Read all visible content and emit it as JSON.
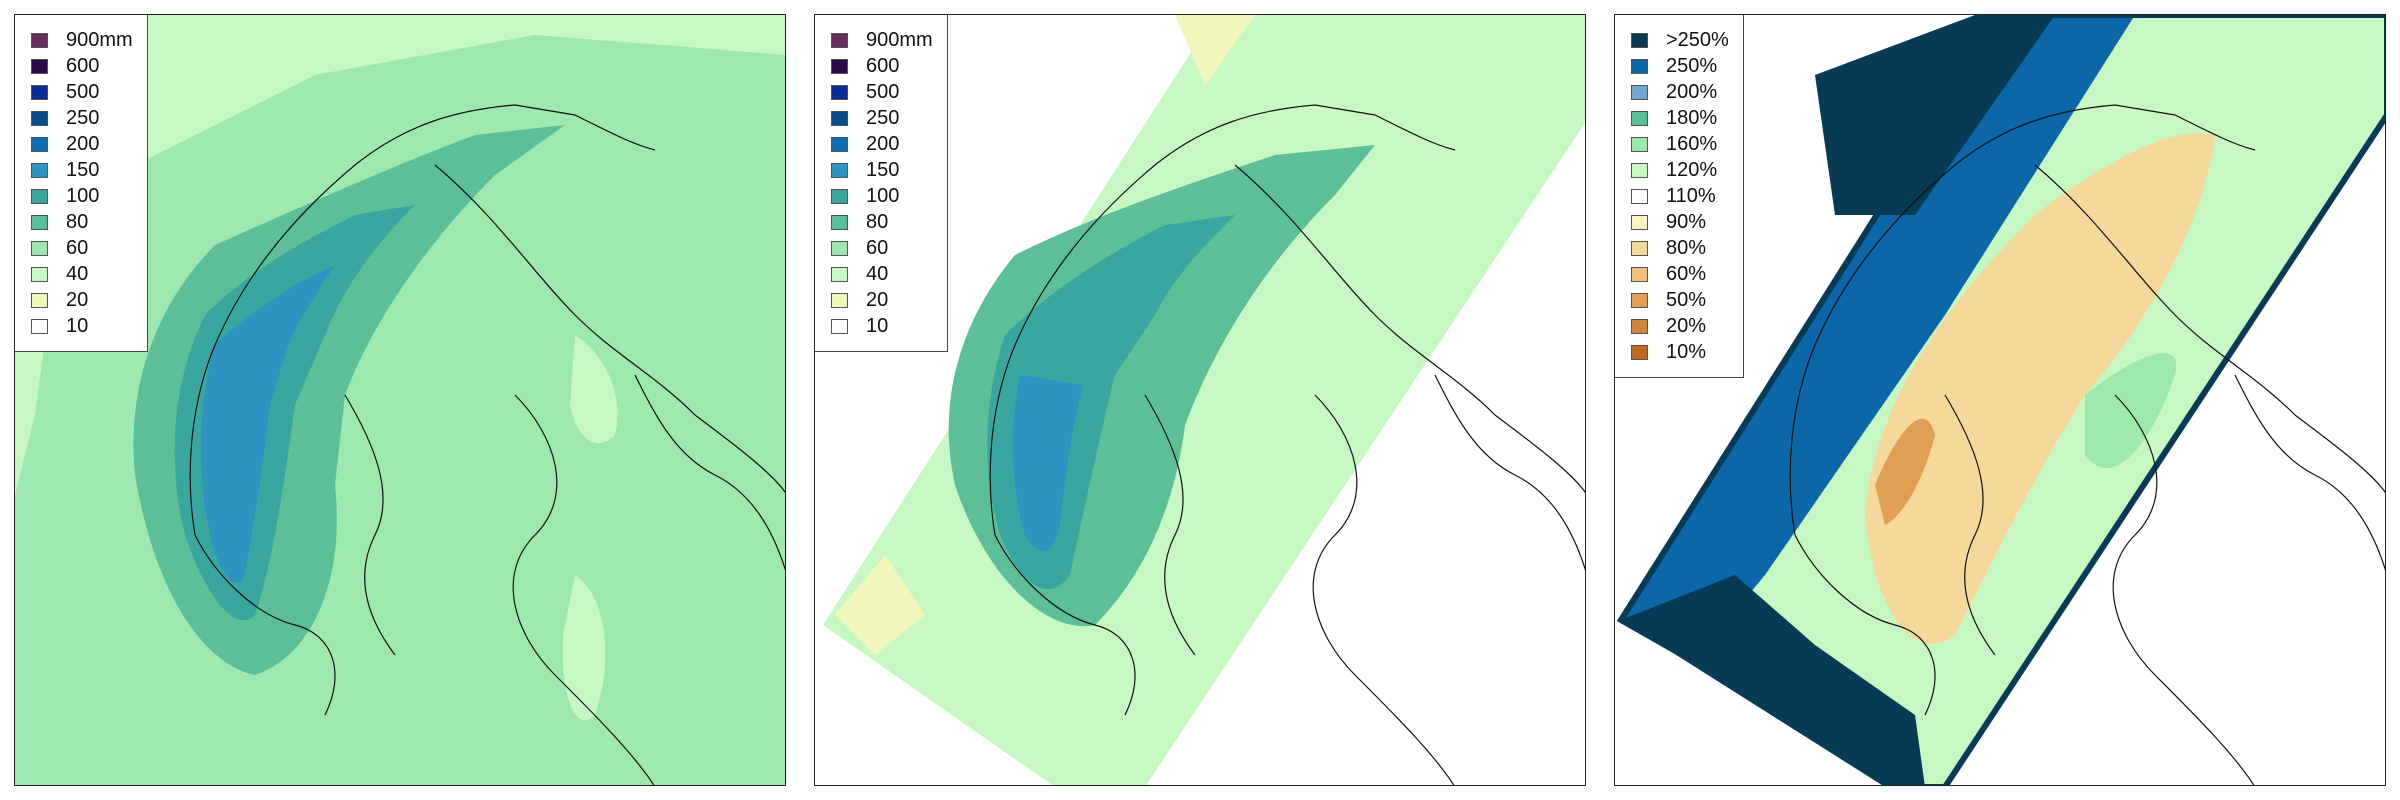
{
  "panels": [
    {
      "id": "panel-1",
      "legend": [
        {
          "label": "900mm",
          "color": "#6a2a5e"
        },
        {
          "label": "600",
          "color": "#2a0a45"
        },
        {
          "label": "500",
          "color": "#0d2a96"
        },
        {
          "label": "250",
          "color": "#0c4d8c"
        },
        {
          "label": "200",
          "color": "#0f6cae"
        },
        {
          "label": "150",
          "color": "#2e93c0"
        },
        {
          "label": "100",
          "color": "#3aa6a0"
        },
        {
          "label": "80",
          "color": "#5cbf98"
        },
        {
          "label": "60",
          "color": "#9de8ae"
        },
        {
          "label": "40",
          "color": "#c7f7c2"
        },
        {
          "label": "20",
          "color": "#f2f6bc"
        },
        {
          "label": "10",
          "color": "#ffffff"
        }
      ]
    },
    {
      "id": "panel-2",
      "legend": [
        {
          "label": "900mm",
          "color": "#6a2a5e"
        },
        {
          "label": "600",
          "color": "#2a0a45"
        },
        {
          "label": "500",
          "color": "#0d2a96"
        },
        {
          "label": "250",
          "color": "#0c4d8c"
        },
        {
          "label": "200",
          "color": "#0f6cae"
        },
        {
          "label": "150",
          "color": "#2e93c0"
        },
        {
          "label": "100",
          "color": "#3aa6a0"
        },
        {
          "label": "80",
          "color": "#5cbf98"
        },
        {
          "label": "60",
          "color": "#9de8ae"
        },
        {
          "label": "40",
          "color": "#c7f7c2"
        },
        {
          "label": "20",
          "color": "#f2f6bc"
        },
        {
          "label": "10",
          "color": "#ffffff"
        }
      ]
    },
    {
      "id": "panel-3",
      "legend": [
        {
          "label": ">250%",
          "color": "#073a55"
        },
        {
          "label": "250%",
          "color": "#0b67a8"
        },
        {
          "label": "200%",
          "color": "#6fa8cc"
        },
        {
          "label": "180%",
          "color": "#5cbf98"
        },
        {
          "label": "160%",
          "color": "#9de8ae"
        },
        {
          "label": "120%",
          "color": "#c7f7c2"
        },
        {
          "label": "110%",
          "color": "#ffffff"
        },
        {
          "label": "90%",
          "color": "#fbf1c3"
        },
        {
          "label": "80%",
          "color": "#f5d99b"
        },
        {
          "label": "60%",
          "color": "#f0c27e"
        },
        {
          "label": "50%",
          "color": "#e09f55"
        },
        {
          "label": "20%",
          "color": "#cf8440"
        },
        {
          "label": "10%",
          "color": "#bd6a25"
        }
      ]
    }
  ]
}
